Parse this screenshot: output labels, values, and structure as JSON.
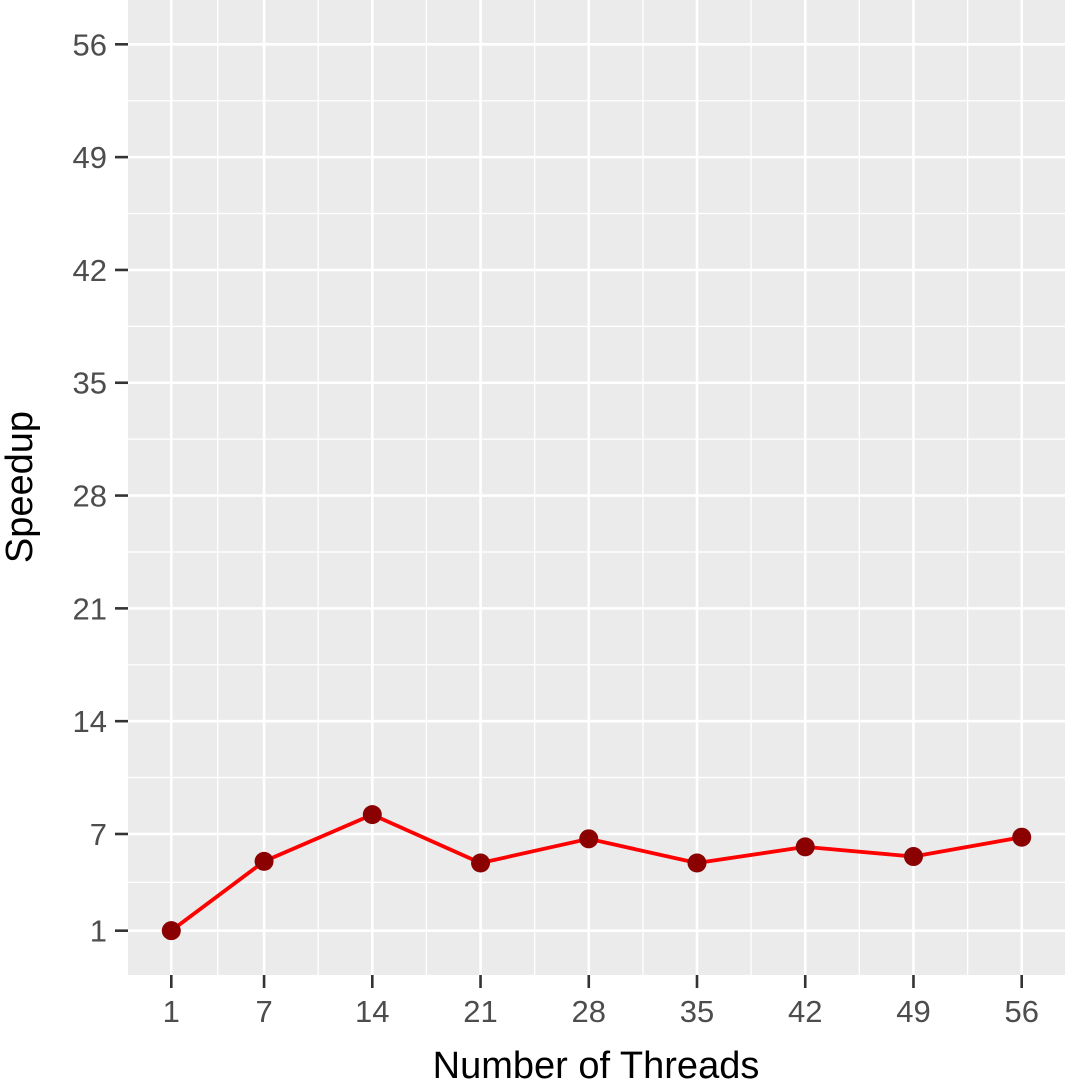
{
  "chart_data": {
    "type": "line",
    "title": "",
    "xlabel": "Number of Threads",
    "ylabel": "Speedup",
    "x": [
      1,
      7,
      14,
      21,
      28,
      35,
      42,
      49,
      56
    ],
    "series": [
      {
        "values": [
          1,
          5.3,
          8.2,
          5.2,
          6.7,
          5.2,
          6.2,
          5.6,
          6.8
        ]
      }
    ],
    "xticks": [
      1,
      7,
      14,
      21,
      28,
      35,
      42,
      49,
      56
    ],
    "yticks": [
      1,
      7,
      14,
      21,
      28,
      35,
      42,
      49,
      56
    ],
    "xlim": [
      -1.8,
      58.8
    ],
    "ylim": [
      -1.75,
      58.75
    ],
    "grid": true,
    "legend": "none",
    "colors": {
      "panel_background": "#ebebeb",
      "grid": "#ffffff",
      "line": "#ff0000",
      "point": "#8b0000",
      "tick": "#333333"
    }
  }
}
